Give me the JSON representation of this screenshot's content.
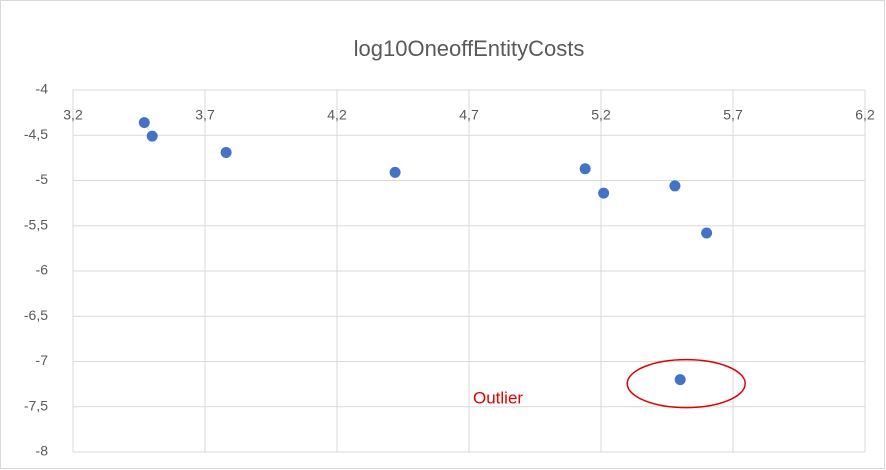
{
  "chart_data": {
    "type": "scatter",
    "title": "log10OneoffEntityCosts",
    "x": [
      3.47,
      3.5,
      3.78,
      4.42,
      5.14,
      5.21,
      5.48,
      5.6,
      5.5
    ],
    "values": [
      -4.36,
      -4.51,
      -4.69,
      -4.91,
      -4.87,
      -5.14,
      -5.06,
      -5.58,
      -7.2
    ],
    "color": "#4472c4",
    "xlim": [
      3.2,
      6.2
    ],
    "xticks": [
      {
        "value": 3.2,
        "label": "3,2"
      },
      {
        "value": 3.7,
        "label": "3,7"
      },
      {
        "value": 4.2,
        "label": "4,2"
      },
      {
        "value": 4.7,
        "label": "4,7"
      },
      {
        "value": 5.2,
        "label": "5,2"
      },
      {
        "value": 5.7,
        "label": "5,7"
      },
      {
        "value": 6.2,
        "label": "6,2"
      }
    ],
    "ylim": [
      -8,
      -4
    ],
    "yticks": [
      -4,
      {
        "value": -4.5,
        "label": "-4,5"
      },
      -5,
      {
        "value": -5.5,
        "label": "-5,5"
      },
      -6,
      {
        "value": -6.5,
        "label": "-6,5"
      },
      -7,
      {
        "value": -7.5,
        "label": "-7,5"
      },
      -8
    ],
    "grid": true,
    "annotation": "Outlier"
  }
}
